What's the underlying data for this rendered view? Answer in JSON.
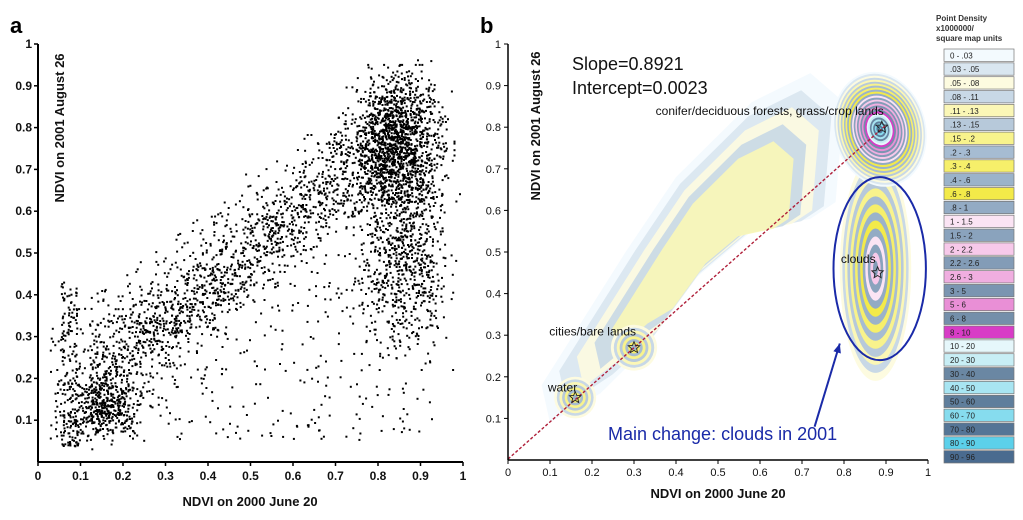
{
  "chart_data": [
    {
      "panel": "a",
      "type": "scatter",
      "xlabel": "NDVI on 2000 June 20",
      "ylabel": "NDVI on 2001 August 26",
      "xlim": [
        0,
        1
      ],
      "ylim": [
        0,
        1
      ],
      "xticks": [
        "0",
        "0.1",
        "0.2",
        "0.3",
        "0.4",
        "0.5",
        "0.6",
        "0.7",
        "0.8",
        "0.9",
        "1"
      ],
      "yticks": [
        "0.1",
        "0.2",
        "0.3",
        "0.4",
        "0.5",
        "0.6",
        "0.7",
        "0.8",
        "0.9",
        "1"
      ],
      "point_color": "#000000"
    },
    {
      "panel": "b",
      "type": "heatmap",
      "xlabel": "NDVI on 2000 June 20",
      "ylabel": "NDVI on 2001 August 26",
      "xlim": [
        0,
        1
      ],
      "ylim": [
        0,
        1
      ],
      "xticks": [
        "0",
        "0.1",
        "0.2",
        "0.3",
        "0.4",
        "0.5",
        "0.6",
        "0.7",
        "0.8",
        "0.9",
        "1"
      ],
      "yticks": [
        "0.1",
        "0.2",
        "0.3",
        "0.4",
        "0.5",
        "0.6",
        "0.7",
        "0.8",
        "0.9",
        "1"
      ],
      "slope_text": "Slope=0.8921",
      "intercept_text": "Intercept=0.0023",
      "regression": {
        "slope": 0.8921,
        "intercept": 0.0023
      },
      "regression_color": "#b0203a",
      "annotations": [
        {
          "label": "conifer/deciduous forests, grass/crop lands",
          "x": 0.89,
          "y": 0.8
        },
        {
          "label": "clouds",
          "x": 0.88,
          "y": 0.45
        },
        {
          "label": "cities/bare lands",
          "x": 0.3,
          "y": 0.27
        },
        {
          "label": "water",
          "x": 0.16,
          "y": 0.15
        }
      ],
      "ellipse": {
        "cx": 0.885,
        "cy": 0.46,
        "rx": 0.11,
        "ry": 0.22,
        "color": "#1a2aa8"
      },
      "change_text": "Main change: clouds in 2001",
      "legend": {
        "title_lines": [
          "Point Density",
          "x1000000/",
          "square map units"
        ],
        "placement": "right",
        "items": [
          {
            "label": "0 - .03",
            "color": "#f3fafe"
          },
          {
            "label": ".03 - .05",
            "color": "#d9e6f0"
          },
          {
            "label": ".05 - .08",
            "color": "#fdfbe0"
          },
          {
            "label": ".08 - .11",
            "color": "#c8d8e6"
          },
          {
            "label": ".11 - .13",
            "color": "#fbf7b6"
          },
          {
            "label": ".13 - .15",
            "color": "#b7c9da"
          },
          {
            "label": ".15 - .2",
            "color": "#f8f38c"
          },
          {
            "label": ".2 - .3",
            "color": "#a6bcd2"
          },
          {
            "label": ".3 - .4",
            "color": "#f6ef6a"
          },
          {
            "label": ".4 - .6",
            "color": "#9bb3ca"
          },
          {
            "label": ".6 - .8",
            "color": "#f3ea49"
          },
          {
            "label": ".8 - 1",
            "color": "#93abc4"
          },
          {
            "label": "1 - 1.5",
            "color": "#fbe4f4"
          },
          {
            "label": "1.5 - 2",
            "color": "#8aa3bd"
          },
          {
            "label": "2 - 2.2",
            "color": "#f7c9ea"
          },
          {
            "label": "2.2 - 2.6",
            "color": "#839cb7"
          },
          {
            "label": "2.6 - 3",
            "color": "#f0aee0"
          },
          {
            "label": "3 - 5",
            "color": "#7b95b1"
          },
          {
            "label": "5 - 6",
            "color": "#e98fd6"
          },
          {
            "label": "6 - 8",
            "color": "#748faa"
          },
          {
            "label": "8 - 10",
            "color": "#d83cc6"
          },
          {
            "label": "10 - 20",
            "color": "#e6f7fb"
          },
          {
            "label": "20 - 30",
            "color": "#c8eef5"
          },
          {
            "label": "30 - 40",
            "color": "#6a87a3"
          },
          {
            "label": "40 - 50",
            "color": "#a8e5f2"
          },
          {
            "label": "50 - 60",
            "color": "#5f7e9c"
          },
          {
            "label": "60 - 70",
            "color": "#86dcee"
          },
          {
            "label": "70 - 80",
            "color": "#557596"
          },
          {
            "label": "80 - 90",
            "color": "#5cd0ea"
          },
          {
            "label": "90 - 96",
            "color": "#4a6b8f"
          }
        ]
      },
      "density_peaks": [
        {
          "x": 0.89,
          "y": 0.8,
          "weight": 1.0
        },
        {
          "x": 0.88,
          "y": 0.46,
          "weight": 0.55
        },
        {
          "x": 0.3,
          "y": 0.27,
          "weight": 0.25
        },
        {
          "x": 0.16,
          "y": 0.15,
          "weight": 0.25
        }
      ]
    }
  ]
}
